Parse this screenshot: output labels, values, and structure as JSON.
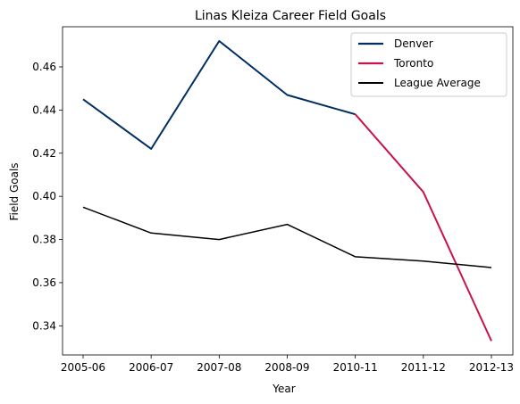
{
  "chart_data": {
    "type": "line",
    "title": "Linas Kleiza Career Field Goals",
    "xlabel": "Year",
    "ylabel": "Field Goals",
    "categories": [
      "2005-06",
      "2006-07",
      "2007-08",
      "2008-09",
      "2010-11",
      "2011-12",
      "2012-13"
    ],
    "ylim": [
      0.3265,
      0.4786
    ],
    "yticks": [
      0.34,
      0.36,
      0.38,
      0.4,
      0.42,
      0.44,
      0.46
    ],
    "ytick_labels": [
      "0.34",
      "0.36",
      "0.38",
      "0.40",
      "0.42",
      "0.44",
      "0.46"
    ],
    "grid": false,
    "legend_position": "top-right",
    "series": [
      {
        "name": "Denver",
        "color": "#002e62",
        "values": [
          0.445,
          0.422,
          0.472,
          0.447,
          0.438,
          null,
          null
        ]
      },
      {
        "name": "Toronto",
        "color": "#c8144a",
        "values": [
          null,
          null,
          null,
          null,
          0.438,
          0.402,
          0.333
        ]
      },
      {
        "name": "League Average",
        "color": "#000000",
        "values": [
          0.395,
          0.383,
          0.38,
          0.387,
          0.372,
          0.37,
          0.367
        ]
      }
    ]
  }
}
